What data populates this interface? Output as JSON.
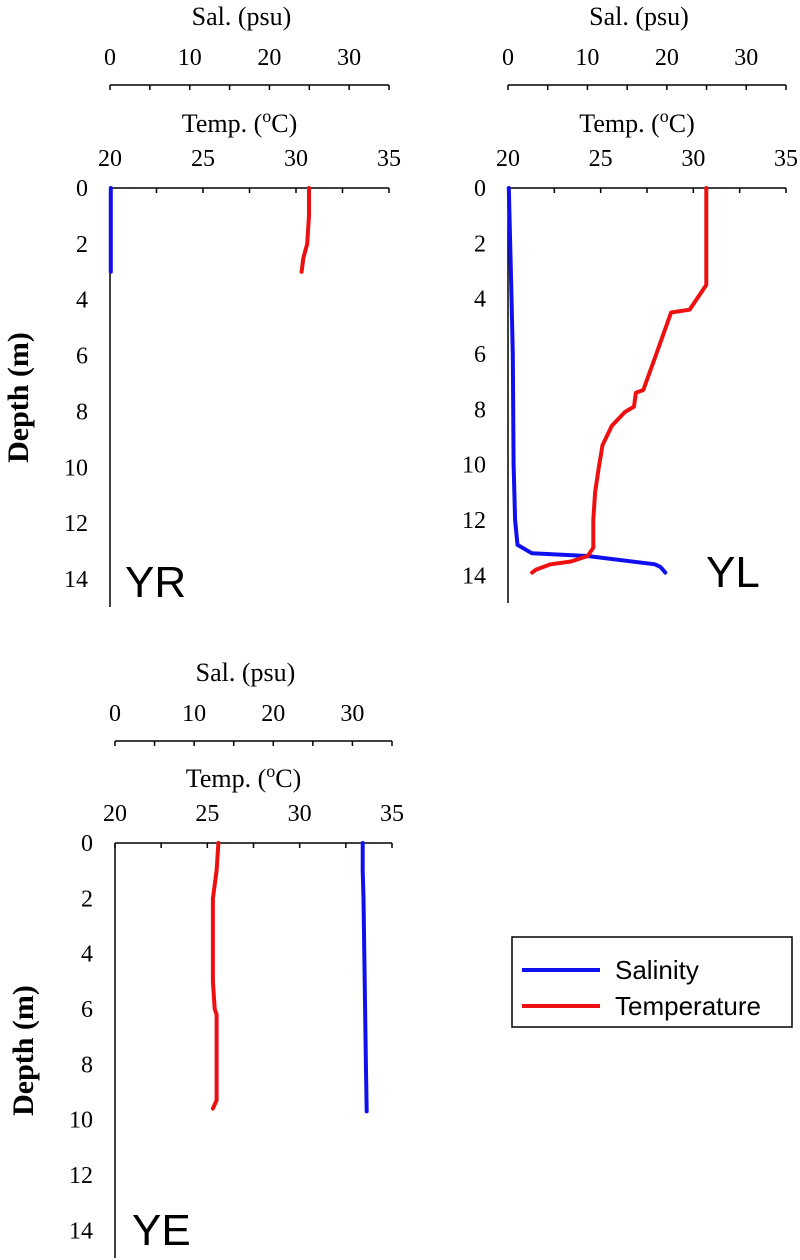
{
  "chart_data": [
    {
      "type": "line",
      "panel": "YR",
      "sal_axis": {
        "label": "Sal. (psu)",
        "range": [
          0,
          35
        ],
        "ticks": [
          0,
          10,
          20,
          30
        ]
      },
      "temp_axis": {
        "label": "Temp. (oC)",
        "label_base": "Temp. (",
        "label_sup": "o",
        "label_end": "C)",
        "range": [
          20,
          35
        ],
        "ticks": [
          20,
          25,
          30,
          35
        ]
      },
      "y_axis": {
        "label": "Depth (m)",
        "range": [
          0,
          15
        ],
        "ticks": [
          0,
          2,
          4,
          6,
          8,
          10,
          12,
          14
        ],
        "inverted": true
      },
      "series": [
        {
          "name": "Salinity",
          "axis": "sal",
          "color": "#1010ee",
          "points": [
            [
              0.1,
              0
            ],
            [
              0.1,
              1
            ],
            [
              0.1,
              2
            ],
            [
              0.1,
              3
            ]
          ]
        },
        {
          "name": "Temperature",
          "axis": "temp",
          "color": "#ee1010",
          "points": [
            [
              30.7,
              0
            ],
            [
              30.7,
              1
            ],
            [
              30.6,
              2
            ],
            [
              30.4,
              2.5
            ],
            [
              30.3,
              3
            ]
          ]
        }
      ]
    },
    {
      "type": "line",
      "panel": "YL",
      "sal_axis": {
        "label": "Sal. (psu)",
        "range": [
          0,
          35
        ],
        "ticks": [
          0,
          10,
          20,
          30
        ]
      },
      "temp_axis": {
        "label": "Temp. (oC)",
        "label_base": "Temp. (",
        "label_sup": "o",
        "label_end": "C)",
        "range": [
          20,
          35
        ],
        "ticks": [
          20,
          25,
          30,
          35
        ]
      },
      "y_axis": {
        "label": "",
        "range": [
          0,
          15
        ],
        "ticks": [
          0,
          2,
          4,
          6,
          8,
          10,
          12,
          14
        ],
        "inverted": true
      },
      "series": [
        {
          "name": "Salinity",
          "axis": "sal",
          "color": "#1010ee",
          "points": [
            [
              0.1,
              0
            ],
            [
              0.4,
              3.5
            ],
            [
              0.6,
              6
            ],
            [
              0.7,
              10
            ],
            [
              0.9,
              12
            ],
            [
              1.2,
              12.9
            ],
            [
              3.0,
              13.2
            ],
            [
              10,
              13.3
            ],
            [
              18.5,
              13.6
            ],
            [
              19.2,
              13.7
            ],
            [
              19.8,
              13.9
            ]
          ]
        },
        {
          "name": "Temperature",
          "axis": "temp",
          "color": "#ee1010",
          "points": [
            [
              30.7,
              0
            ],
            [
              30.7,
              2
            ],
            [
              30.7,
              3.5
            ],
            [
              30.6,
              3.6
            ],
            [
              29.8,
              4.4
            ],
            [
              28.8,
              4.5
            ],
            [
              28.0,
              6
            ],
            [
              27.3,
              7.3
            ],
            [
              26.9,
              7.4
            ],
            [
              26.8,
              7.9
            ],
            [
              26.3,
              8.1
            ],
            [
              25.6,
              8.6
            ],
            [
              25.1,
              9.3
            ],
            [
              24.9,
              10.1
            ],
            [
              24.7,
              11
            ],
            [
              24.6,
              12
            ],
            [
              24.6,
              13.0
            ],
            [
              24.3,
              13.3
            ],
            [
              23.4,
              13.5
            ],
            [
              22.3,
              13.6
            ],
            [
              21.5,
              13.8
            ],
            [
              21.3,
              13.9
            ]
          ]
        }
      ]
    },
    {
      "type": "line",
      "panel": "YE",
      "sal_axis": {
        "label": "Sal. (psu)",
        "range": [
          0,
          35
        ],
        "ticks": [
          0,
          10,
          20,
          30
        ]
      },
      "temp_axis": {
        "label": "Temp. (oC)",
        "label_base": "Temp. (",
        "label_sup": "o",
        "label_end": "C)",
        "range": [
          20,
          35
        ],
        "ticks": [
          20,
          25,
          30,
          35
        ]
      },
      "y_axis": {
        "label": "Depth (m)",
        "range": [
          0,
          15
        ],
        "ticks": [
          0,
          2,
          4,
          6,
          8,
          10,
          12,
          14
        ],
        "inverted": true
      },
      "series": [
        {
          "name": "Salinity",
          "axis": "sal",
          "color": "#1010ee",
          "points": [
            [
              31.3,
              0
            ],
            [
              31.3,
              1
            ],
            [
              31.4,
              2
            ],
            [
              31.5,
              4
            ],
            [
              31.6,
              6
            ],
            [
              31.7,
              8
            ],
            [
              31.8,
              9.7
            ]
          ]
        },
        {
          "name": "Temperature",
          "axis": "temp",
          "color": "#ee1010",
          "points": [
            [
              25.6,
              0
            ],
            [
              25.5,
              1
            ],
            [
              25.3,
              2
            ],
            [
              25.3,
              4
            ],
            [
              25.3,
              5
            ],
            [
              25.4,
              6
            ],
            [
              25.5,
              6.2
            ],
            [
              25.5,
              8
            ],
            [
              25.5,
              9.3
            ],
            [
              25.3,
              9.6
            ]
          ]
        }
      ]
    }
  ],
  "legend": {
    "items": [
      {
        "label": "Salinity",
        "color": "#1010ee"
      },
      {
        "label": "Temperature",
        "color": "#ee1010"
      }
    ]
  }
}
